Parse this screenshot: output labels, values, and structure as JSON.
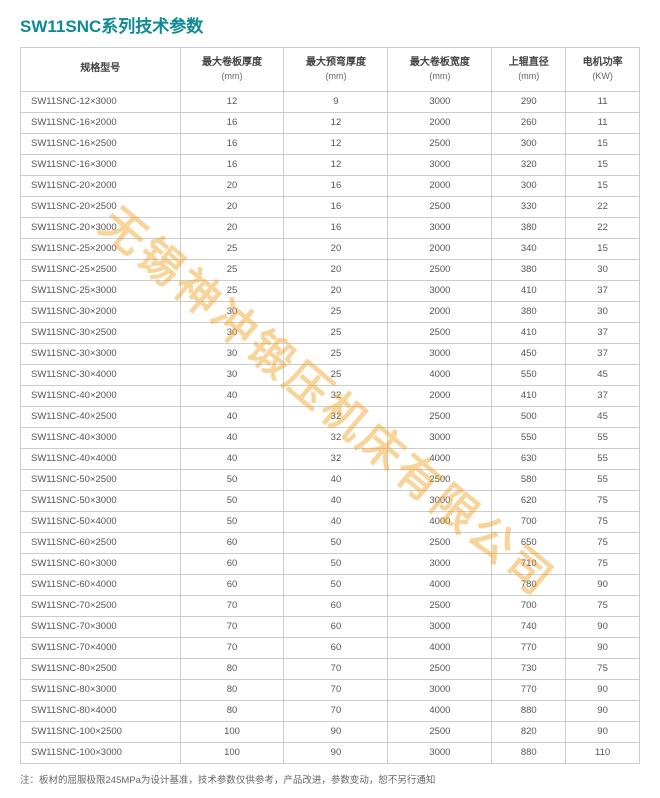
{
  "title": "SW11SNC系列技术参数",
  "watermark": "无锡神冲锻压机床有限公司",
  "note": "注：板材的屈服极限245MPa为设计基准，技术参数仅供参考，产品改进，参数变动，恕不另行通知",
  "columns": [
    {
      "label": "规格型号",
      "unit": ""
    },
    {
      "label": "最大卷板厚度",
      "unit": "(mm)"
    },
    {
      "label": "最大预弯厚度",
      "unit": "(mm)"
    },
    {
      "label": "最大卷板宽度",
      "unit": "(mm)"
    },
    {
      "label": "上辊直径",
      "unit": "(mm)"
    },
    {
      "label": "电机功率",
      "unit": "(KW)"
    }
  ],
  "rows": [
    [
      "SW11SNC-12×3000",
      "12",
      "9",
      "3000",
      "290",
      "11"
    ],
    [
      "SW11SNC-16×2000",
      "16",
      "12",
      "2000",
      "260",
      "11"
    ],
    [
      "SW11SNC-16×2500",
      "16",
      "12",
      "2500",
      "300",
      "15"
    ],
    [
      "SW11SNC-16×3000",
      "16",
      "12",
      "3000",
      "320",
      "15"
    ],
    [
      "SW11SNC-20×2000",
      "20",
      "16",
      "2000",
      "300",
      "15"
    ],
    [
      "SW11SNC-20×2500",
      "20",
      "16",
      "2500",
      "330",
      "22"
    ],
    [
      "SW11SNC-20×3000",
      "20",
      "16",
      "3000",
      "380",
      "22"
    ],
    [
      "SW11SNC-25×2000",
      "25",
      "20",
      "2000",
      "340",
      "15"
    ],
    [
      "SW11SNC-25×2500",
      "25",
      "20",
      "2500",
      "380",
      "30"
    ],
    [
      "SW11SNC-25×3000",
      "25",
      "20",
      "3000",
      "410",
      "37"
    ],
    [
      "SW11SNC-30×2000",
      "30",
      "25",
      "2000",
      "380",
      "30"
    ],
    [
      "SW11SNC-30×2500",
      "30",
      "25",
      "2500",
      "410",
      "37"
    ],
    [
      "SW11SNC-30×3000",
      "30",
      "25",
      "3000",
      "450",
      "37"
    ],
    [
      "SW11SNC-30×4000",
      "30",
      "25",
      "4000",
      "550",
      "45"
    ],
    [
      "SW11SNC-40×2000",
      "40",
      "32",
      "2000",
      "410",
      "37"
    ],
    [
      "SW11SNC-40×2500",
      "40",
      "32",
      "2500",
      "500",
      "45"
    ],
    [
      "SW11SNC-40×3000",
      "40",
      "32",
      "3000",
      "550",
      "55"
    ],
    [
      "SW11SNC-40×4000",
      "40",
      "32",
      "4000",
      "630",
      "55"
    ],
    [
      "SW11SNC-50×2500",
      "50",
      "40",
      "2500",
      "580",
      "55"
    ],
    [
      "SW11SNC-50×3000",
      "50",
      "40",
      "3000",
      "620",
      "75"
    ],
    [
      "SW11SNC-50×4000",
      "50",
      "40",
      "4000",
      "700",
      "75"
    ],
    [
      "SW11SNC-60×2500",
      "60",
      "50",
      "2500",
      "650",
      "75"
    ],
    [
      "SW11SNC-60×3000",
      "60",
      "50",
      "3000",
      "710",
      "75"
    ],
    [
      "SW11SNC-60×4000",
      "60",
      "50",
      "4000",
      "780",
      "90"
    ],
    [
      "SW11SNC-70×2500",
      "70",
      "60",
      "2500",
      "700",
      "75"
    ],
    [
      "SW11SNC-70×3000",
      "70",
      "60",
      "3000",
      "740",
      "90"
    ],
    [
      "SW11SNC-70×4000",
      "70",
      "60",
      "4000",
      "770",
      "90"
    ],
    [
      "SW11SNC-80×2500",
      "80",
      "70",
      "2500",
      "730",
      "75"
    ],
    [
      "SW11SNC-80×3000",
      "80",
      "70",
      "3000",
      "770",
      "90"
    ],
    [
      "SW11SNC-80×4000",
      "80",
      "70",
      "4000",
      "880",
      "90"
    ],
    [
      "SW11SNC-100×2500",
      "100",
      "90",
      "2500",
      "820",
      "90"
    ],
    [
      "SW11SNC-100×3000",
      "100",
      "90",
      "3000",
      "880",
      "110"
    ]
  ]
}
